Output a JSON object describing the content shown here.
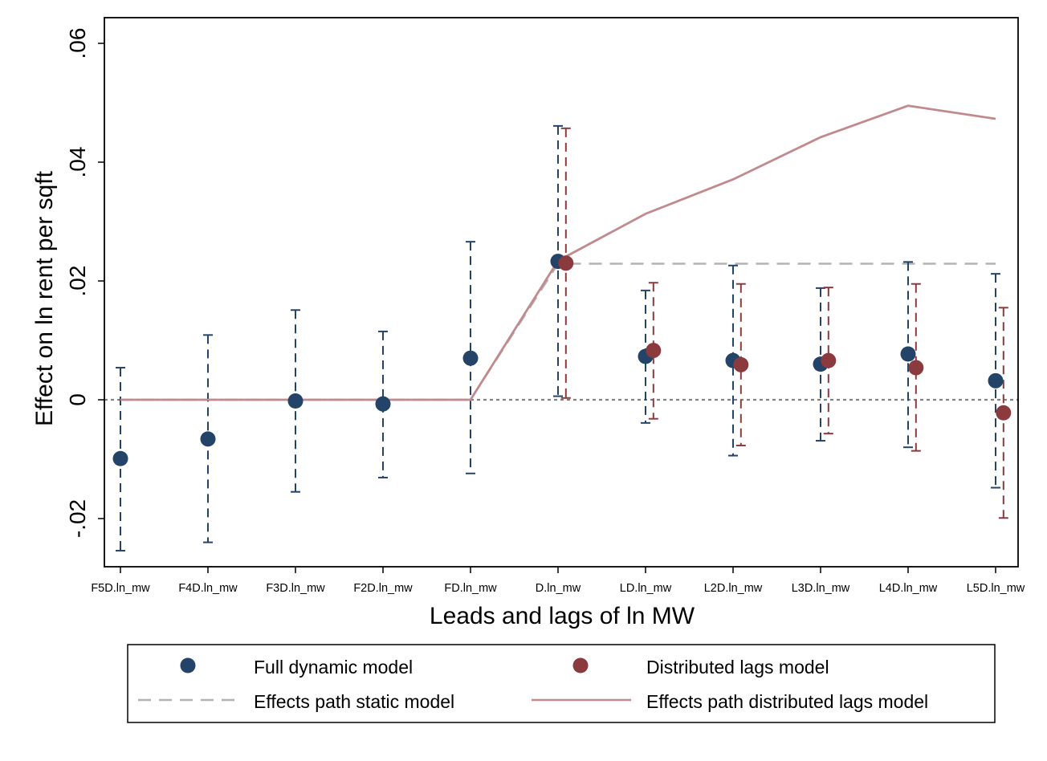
{
  "chart_data": {
    "type": "scatter",
    "xlabel": "Leads and lags of ln MW",
    "ylabel": "Effect on ln rent per sqft",
    "categories": [
      "F5D.ln_mw",
      "F4D.ln_mw",
      "F3D.ln_mw",
      "F2D.ln_mw",
      "FD.ln_mw",
      "D.ln_mw",
      "LD.ln_mw",
      "L2D.ln_mw",
      "L3D.ln_mw",
      "L4D.ln_mw",
      "L5D.ln_mw"
    ],
    "ylim": [
      -0.028,
      0.063
    ],
    "yticks": [
      -0.02,
      0,
      0.02,
      0.04,
      0.06
    ],
    "ytick_labels": [
      "-.02",
      "0",
      ".02",
      ".04",
      ".06"
    ],
    "grid": false,
    "legend_position": "bottom",
    "series": [
      {
        "name": "Full dynamic model",
        "kind": "points-with-ci",
        "color": "#234468",
        "offset": 0,
        "values": [
          -0.0099,
          -0.0066,
          -0.0002,
          -0.0007,
          0.007,
          0.0233,
          0.0073,
          0.0066,
          0.006,
          0.0077,
          0.0032
        ],
        "ci_low": [
          -0.0254,
          -0.024,
          -0.0155,
          -0.0131,
          -0.0124,
          0.0006,
          -0.0039,
          -0.0094,
          -0.0069,
          -0.008,
          -0.0148
        ],
        "ci_high": [
          0.0054,
          0.0109,
          0.0151,
          0.0115,
          0.0266,
          0.0461,
          0.0184,
          0.0226,
          0.0188,
          0.0232,
          0.0212
        ]
      },
      {
        "name": "Distributed lags model",
        "kind": "points-with-ci",
        "color": "#8b3a3e",
        "offset": 0.09,
        "values": [
          null,
          null,
          null,
          null,
          null,
          0.023,
          0.0083,
          0.0059,
          0.0066,
          0.0054,
          -0.0022
        ],
        "ci_low": [
          null,
          null,
          null,
          null,
          null,
          0.0003,
          -0.0032,
          -0.0077,
          -0.0057,
          -0.0086,
          -0.0199
        ],
        "ci_high": [
          null,
          null,
          null,
          null,
          null,
          0.0457,
          0.0197,
          0.0195,
          0.0189,
          0.0195,
          0.0155
        ]
      },
      {
        "name": "Effects path static model",
        "kind": "dashed-line",
        "color": "#b3b3b3",
        "values": [
          0,
          0,
          0,
          0,
          0,
          0.0229,
          0.0229,
          0.0229,
          0.0229,
          0.0229,
          0.0229
        ]
      },
      {
        "name": "Effects path distributed lags model",
        "kind": "line",
        "color": "#c08a8e",
        "values": [
          0,
          0,
          0,
          0,
          0,
          0.0234,
          0.0313,
          0.0371,
          0.0442,
          0.0495,
          0.0473
        ]
      }
    ],
    "reference_line": {
      "y": 0,
      "style": "dotted",
      "color": "#808080"
    }
  },
  "legend": {
    "items": [
      {
        "label": "Full dynamic model",
        "marker": "dot",
        "color": "#234468"
      },
      {
        "label": "Distributed lags model",
        "marker": "dot",
        "color": "#8b3a3e"
      },
      {
        "label": "Effects path static model",
        "marker": "dashed-line",
        "color": "#b3b3b3"
      },
      {
        "label": "Effects path distributed lags model",
        "marker": "line",
        "color": "#c08a8e"
      }
    ]
  }
}
